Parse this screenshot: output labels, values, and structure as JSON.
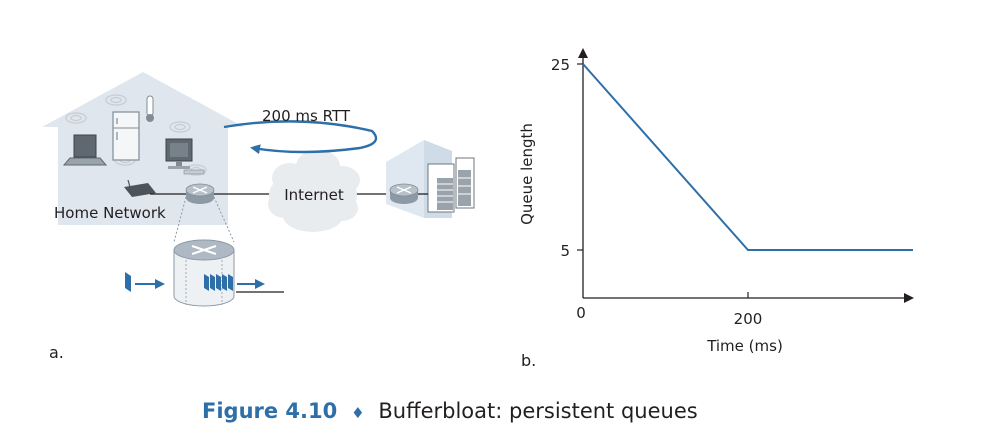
{
  "panel_a": {
    "label": "a.",
    "home_network_label": "Home Network",
    "internet_label": "Internet",
    "rtt_label": "200 ms RTT",
    "colors": {
      "house_fill": "#dfe6ee",
      "cloud_fill": "#e9ecef",
      "arrow": "#2e6fa8",
      "device": "#7f8c96"
    }
  },
  "panel_b": {
    "label": "b.",
    "chart_data": {
      "type": "line",
      "title": "",
      "xlabel": "Time (ms)",
      "ylabel": "Queue length",
      "x_ticks": [
        "0",
        "200"
      ],
      "y_ticks": [
        "5",
        "25"
      ],
      "xlim": [
        0,
        400
      ],
      "ylim": [
        0,
        27
      ],
      "grid": false,
      "series": [
        {
          "x": [
            0,
            200,
            400
          ],
          "y": [
            25,
            5,
            5
          ],
          "color": "#2e6fa8"
        }
      ]
    }
  },
  "caption": {
    "number": "Figure 4.10",
    "separator": "♦",
    "text": "Bufferbloat: persistent queues",
    "number_color": "#2e6fa8"
  }
}
